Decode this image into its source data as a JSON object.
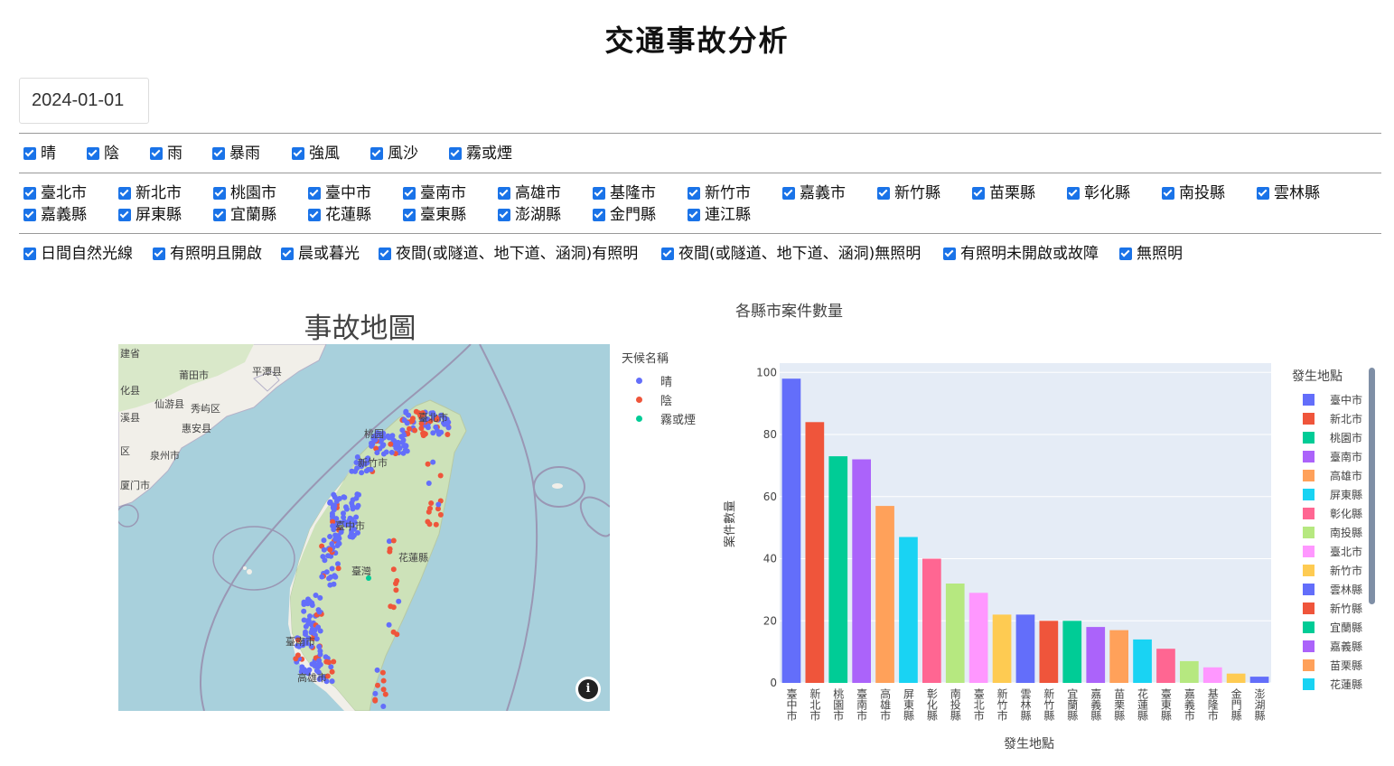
{
  "header": {
    "title": "交通事故分析"
  },
  "date_picker": {
    "value": "2024-01-01"
  },
  "filters": {
    "weather": [
      "晴",
      "陰",
      "雨",
      "暴雨",
      "強風",
      "風沙",
      "霧或煙"
    ],
    "county_row1": [
      "臺北市",
      "新北市",
      "桃園市",
      "臺中市",
      "臺南市",
      "高雄市",
      "基隆市",
      "新竹市",
      "嘉義市",
      "新竹縣",
      "苗栗縣",
      "彰化縣",
      "南投縣",
      "雲林縣"
    ],
    "county_row2": [
      "嘉義縣",
      "屏東縣",
      "宜蘭縣",
      "花蓮縣",
      "臺東縣",
      "澎湖縣",
      "金門縣",
      "連江縣"
    ],
    "light": [
      "日間自然光線",
      "有照明且開啟",
      "晨或暮光",
      "夜間(或隧道、地下道、涵洞)有照明",
      "夜間(或隧道、地下道、涵洞)無照明",
      "有照明未開啟或故障",
      "無照明"
    ]
  },
  "map": {
    "title": "事故地圖",
    "legend_title": "天候名稱",
    "legend": [
      {
        "name": "晴",
        "color": "#636efa"
      },
      {
        "name": "陰",
        "color": "#ef553b"
      },
      {
        "name": "霧或煙",
        "color": "#00cc96"
      }
    ],
    "place_labels": [
      "建省",
      "莆田市",
      "平潭县",
      "化县",
      "仙游县",
      "秀屿区",
      "溪县",
      "惠安县",
      "区",
      "泉州市",
      "厦门市",
      "臺北市",
      "桃园",
      "新竹市",
      "臺中市",
      "花蓮縣",
      "臺灣",
      "臺南市",
      "高雄市"
    ],
    "info_icon": "i"
  },
  "chart_data": {
    "type": "bar",
    "title": "各縣市案件數量",
    "xlabel": "發生地點",
    "ylabel": "案件數量",
    "legend_title": "發生地點",
    "ylim": [
      0,
      103
    ],
    "yticks": [
      0,
      20,
      40,
      60,
      80,
      100
    ],
    "categories": [
      "臺中市",
      "新北市",
      "桃園市",
      "臺南市",
      "高雄市",
      "屏東縣",
      "彰化縣",
      "南投縣",
      "臺北市",
      "新竹市",
      "雲林縣",
      "新竹縣",
      "宜蘭縣",
      "嘉義縣",
      "苗栗縣",
      "花蓮縣",
      "臺東縣",
      "嘉義市",
      "基隆市",
      "金門縣",
      "澎湖縣"
    ],
    "values": [
      98,
      84,
      73,
      72,
      57,
      47,
      40,
      32,
      29,
      22,
      22,
      20,
      20,
      18,
      17,
      14,
      11,
      7,
      5,
      3,
      2
    ],
    "colors": [
      "#636efa",
      "#ef553b",
      "#00cc96",
      "#ab63fa",
      "#ffa15a",
      "#19d3f3",
      "#ff6692",
      "#b6e880",
      "#ff97ff",
      "#fecb52",
      "#636efa",
      "#ef553b",
      "#00cc96",
      "#ab63fa",
      "#ffa15a",
      "#19d3f3",
      "#ff6692",
      "#b6e880",
      "#ff97ff",
      "#fecb52",
      "#636efa"
    ],
    "legend_visible": [
      "臺中市",
      "新北市",
      "桃園市",
      "臺南市",
      "高雄市",
      "屏東縣",
      "彰化縣",
      "南投縣",
      "臺北市",
      "新竹市",
      "雲林縣",
      "新竹縣",
      "宜蘭縣",
      "嘉義縣",
      "苗栗縣",
      "花蓮縣"
    ],
    "grid": true
  }
}
